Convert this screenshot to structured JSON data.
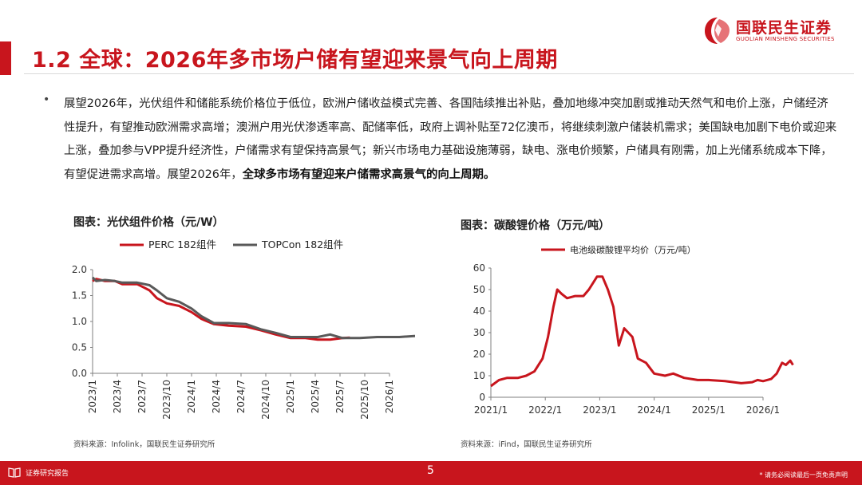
{
  "header": {
    "title": "1.2 全球：2026年多市场户储有望迎来景气向上周期",
    "logo_cn": "国联民生证券",
    "logo_en": "GUOLIAN MINSHENG SECURITIES",
    "brand_color": "#c8151d"
  },
  "body": {
    "bullet": "•",
    "paragraph_main": "展望2026年，光伏组件和储能系统价格位于低位，欧洲户储收益模式完善、各国陆续推出补贴，叠加地缘冲突加剧或推动天然气和电价上涨，户储经济性提升，有望推动欧洲需求高增；澳洲户用光伏渗透率高、配储率低，政府上调补贴至72亿澳币，将继续刺激户储装机需求；美国缺电加剧下电价或迎来上涨，叠加参与VPP提升经济性，户储需求有望保持高景气；新兴市场电力基础设施薄弱，缺电、涨电价频繁，户储具有刚需，加上光储系统成本下降，有望促进需求高增。展望2026年，",
    "paragraph_bold": "全球多市场有望迎来户储需求高景气的向上周期。"
  },
  "chart_data": [
    {
      "type": "line",
      "title": "图表：光伏组件价格（元/W）",
      "source": "资料来源：Infolink，国联民生证券研究所",
      "ylim": [
        0,
        2.0
      ],
      "yticks": [
        "2.0",
        "1.5",
        "1.0",
        "0.5",
        "0.0"
      ],
      "xticks": [
        "2023/1",
        "2023/4",
        "2023/7",
        "2023/10",
        "2024/1",
        "2024/4",
        "2024/7",
        "2024/10",
        "2025/1",
        "2025/4",
        "2025/7",
        "2025/10",
        "2026/1"
      ],
      "legend_position": "top",
      "series": [
        {
          "name": "PERC 182组件",
          "color": "#c8151d",
          "points": [
            [
              0,
              1.78
            ],
            [
              0.15,
              1.82
            ],
            [
              0.5,
              1.78
            ],
            [
              0.9,
              1.78
            ],
            [
              1.2,
              1.72
            ],
            [
              1.8,
              1.72
            ],
            [
              2.1,
              1.65
            ],
            [
              2.3,
              1.6
            ],
            [
              2.6,
              1.45
            ],
            [
              3.0,
              1.35
            ],
            [
              3.5,
              1.3
            ],
            [
              4.0,
              1.18
            ],
            [
              4.4,
              1.05
            ],
            [
              4.9,
              0.95
            ],
            [
              5.5,
              0.92
            ],
            [
              6.2,
              0.9
            ],
            [
              6.8,
              0.83
            ],
            [
              7.4,
              0.75
            ],
            [
              8.0,
              0.68
            ],
            [
              8.6,
              0.68
            ],
            [
              9.1,
              0.65
            ],
            [
              9.6,
              0.65
            ],
            [
              10.1,
              0.68
            ],
            [
              10.4,
              0.69
            ]
          ]
        },
        {
          "name": "TOPCon 182组件",
          "color": "#595959",
          "points": [
            [
              0,
              1.85
            ],
            [
              0.15,
              1.78
            ],
            [
              0.5,
              1.8
            ],
            [
              0.9,
              1.78
            ],
            [
              1.2,
              1.75
            ],
            [
              1.8,
              1.75
            ],
            [
              2.1,
              1.72
            ],
            [
              2.3,
              1.7
            ],
            [
              2.6,
              1.6
            ],
            [
              3.0,
              1.45
            ],
            [
              3.5,
              1.38
            ],
            [
              4.0,
              1.25
            ],
            [
              4.4,
              1.1
            ],
            [
              4.9,
              0.97
            ],
            [
              5.5,
              0.97
            ],
            [
              6.2,
              0.95
            ],
            [
              6.8,
              0.85
            ],
            [
              7.4,
              0.78
            ],
            [
              8.0,
              0.7
            ],
            [
              8.6,
              0.7
            ],
            [
              9.1,
              0.7
            ],
            [
              9.6,
              0.75
            ],
            [
              10.1,
              0.68
            ],
            [
              10.8,
              0.68
            ],
            [
              11.5,
              0.7
            ],
            [
              12.4,
              0.7
            ],
            [
              13.0,
              0.72
            ],
            [
              13.4,
              0.72
            ],
            [
              13.8,
              0.74
            ],
            [
              14.2,
              0.75
            ]
          ]
        }
      ]
    },
    {
      "type": "line",
      "title": "图表：碳酸锂价格（万元/吨）",
      "source": "资料来源：iFind，国联民生证券研究所",
      "ylim": [
        0,
        60
      ],
      "yticks": [
        "60",
        "50",
        "40",
        "30",
        "20",
        "10",
        "0"
      ],
      "xticks": [
        "2021/1",
        "2022/1",
        "2023/1",
        "2024/1",
        "2025/1",
        "2026/1"
      ],
      "legend_position": "top",
      "series": [
        {
          "name": "电池级碳酸锂平均价（万元/吨）",
          "color": "#c8151d",
          "points": [
            [
              0,
              5.2
            ],
            [
              0.15,
              8
            ],
            [
              0.3,
              9
            ],
            [
              0.5,
              9
            ],
            [
              0.65,
              10
            ],
            [
              0.8,
              12
            ],
            [
              0.95,
              18
            ],
            [
              1.05,
              28
            ],
            [
              1.15,
              42
            ],
            [
              1.22,
              50
            ],
            [
              1.3,
              48
            ],
            [
              1.4,
              46
            ],
            [
              1.55,
              47
            ],
            [
              1.7,
              47
            ],
            [
              1.8,
              50
            ],
            [
              1.95,
              56
            ],
            [
              2.05,
              56
            ],
            [
              2.15,
              50
            ],
            [
              2.25,
              42
            ],
            [
              2.35,
              24
            ],
            [
              2.45,
              32
            ],
            [
              2.6,
              28
            ],
            [
              2.7,
              18
            ],
            [
              2.85,
              16
            ],
            [
              3.0,
              11
            ],
            [
              3.2,
              10
            ],
            [
              3.35,
              11
            ],
            [
              3.55,
              9
            ],
            [
              3.8,
              8
            ],
            [
              4.0,
              8
            ],
            [
              4.3,
              7.5
            ],
            [
              4.6,
              6.5
            ],
            [
              4.8,
              7
            ],
            [
              4.9,
              8
            ],
            [
              5.0,
              7.5
            ],
            [
              5.15,
              8.5
            ],
            [
              5.25,
              11
            ],
            [
              5.35,
              16
            ],
            [
              5.42,
              15
            ],
            [
              5.5,
              17
            ],
            [
              5.55,
              15
            ]
          ]
        }
      ]
    }
  ],
  "footer": {
    "label": "证券研究报告",
    "page": "5",
    "disclaimer": "* 请务必阅读最后一页免责声明"
  }
}
